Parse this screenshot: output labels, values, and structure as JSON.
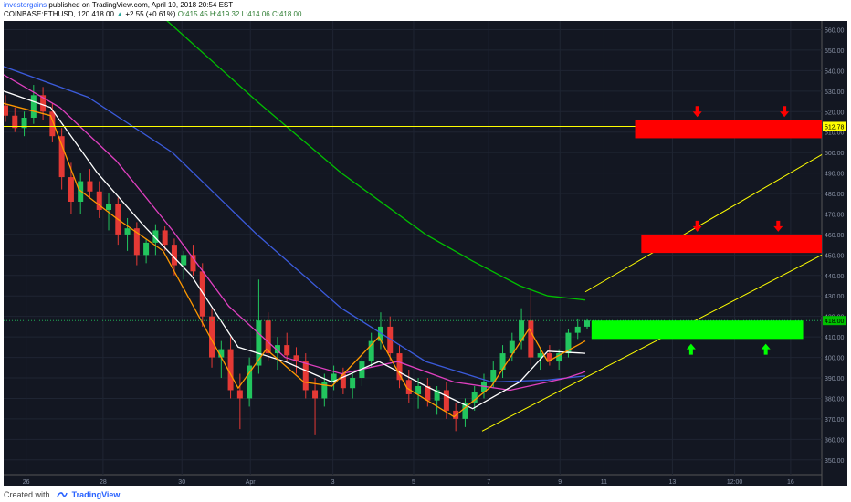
{
  "header": {
    "author": "investorgains",
    "published": "published on TradingView.com, April 10, 2018 20:54 EST",
    "symbol": "COINBASE:ETHUSD, 120",
    "last": "418.00",
    "change": "+2.55 (+0.61%)",
    "open": "O:415.45",
    "high": "H:419.32",
    "low": "L:414.06",
    "close": "C:418.00"
  },
  "footer": {
    "created_with": "Created with",
    "brand": "TradingView"
  },
  "chart_data": {
    "type": "candlestick",
    "symbol": "COINBASE:ETHUSD",
    "interval": "120",
    "ylim": [
      345,
      562
    ],
    "y_ticks": [
      "560.00",
      "550.00",
      "540.00",
      "530.00",
      "520.00",
      "510.00",
      "500.00",
      "490.00",
      "480.00",
      "470.00",
      "460.00",
      "450.00",
      "440.00",
      "430.00",
      "420.00",
      "410.00",
      "400.00",
      "390.00",
      "380.00",
      "370.00",
      "360.00",
      "350.00"
    ],
    "x_ticks": [
      "26",
      "28",
      "30",
      "Apr",
      "3",
      "5",
      "7",
      "9",
      "11",
      "13",
      "12:00",
      "16"
    ],
    "price_labels": [
      {
        "text": "512.78",
        "value": 512.78,
        "color": "#ffff00"
      },
      {
        "text": "418.00",
        "value": 418.0,
        "color": "#00c000"
      }
    ],
    "series": [
      {
        "kind": "ohlc",
        "points": [
          {
            "t": 0,
            "o": 523,
            "h": 528,
            "l": 515,
            "c": 518
          },
          {
            "t": 1,
            "o": 518,
            "h": 522,
            "l": 510,
            "c": 512
          },
          {
            "t": 2,
            "o": 512,
            "h": 520,
            "l": 508,
            "c": 517
          },
          {
            "t": 3,
            "o": 517,
            "h": 533,
            "l": 514,
            "c": 528
          },
          {
            "t": 4,
            "o": 528,
            "h": 532,
            "l": 516,
            "c": 520
          },
          {
            "t": 5,
            "o": 520,
            "h": 524,
            "l": 505,
            "c": 508
          },
          {
            "t": 6,
            "o": 508,
            "h": 512,
            "l": 482,
            "c": 488
          },
          {
            "t": 7,
            "o": 488,
            "h": 495,
            "l": 470,
            "c": 476
          },
          {
            "t": 8,
            "o": 476,
            "h": 490,
            "l": 470,
            "c": 486
          },
          {
            "t": 9,
            "o": 486,
            "h": 492,
            "l": 478,
            "c": 481
          },
          {
            "t": 10,
            "o": 481,
            "h": 486,
            "l": 468,
            "c": 472
          },
          {
            "t": 11,
            "o": 472,
            "h": 480,
            "l": 462,
            "c": 475
          },
          {
            "t": 12,
            "o": 475,
            "h": 478,
            "l": 455,
            "c": 460
          },
          {
            "t": 13,
            "o": 460,
            "h": 468,
            "l": 452,
            "c": 463
          },
          {
            "t": 14,
            "o": 463,
            "h": 466,
            "l": 445,
            "c": 450
          },
          {
            "t": 15,
            "o": 450,
            "h": 458,
            "l": 446,
            "c": 456
          },
          {
            "t": 16,
            "o": 456,
            "h": 465,
            "l": 450,
            "c": 462
          },
          {
            "t": 17,
            "o": 462,
            "h": 464,
            "l": 452,
            "c": 455
          },
          {
            "t": 18,
            "o": 455,
            "h": 458,
            "l": 440,
            "c": 445
          },
          {
            "t": 19,
            "o": 445,
            "h": 452,
            "l": 438,
            "c": 450
          },
          {
            "t": 20,
            "o": 450,
            "h": 455,
            "l": 440,
            "c": 442
          },
          {
            "t": 21,
            "o": 442,
            "h": 446,
            "l": 415,
            "c": 420
          },
          {
            "t": 22,
            "o": 420,
            "h": 424,
            "l": 395,
            "c": 400
          },
          {
            "t": 23,
            "o": 400,
            "h": 408,
            "l": 390,
            "c": 404
          },
          {
            "t": 24,
            "o": 404,
            "h": 410,
            "l": 380,
            "c": 384
          },
          {
            "t": 25,
            "o": 384,
            "h": 392,
            "l": 365,
            "c": 380
          },
          {
            "t": 26,
            "o": 380,
            "h": 400,
            "l": 376,
            "c": 396
          },
          {
            "t": 27,
            "o": 396,
            "h": 438,
            "l": 392,
            "c": 418
          },
          {
            "t": 28,
            "o": 418,
            "h": 422,
            "l": 398,
            "c": 402
          },
          {
            "t": 29,
            "o": 402,
            "h": 410,
            "l": 394,
            "c": 406
          },
          {
            "t": 30,
            "o": 406,
            "h": 412,
            "l": 398,
            "c": 401
          },
          {
            "t": 31,
            "o": 401,
            "h": 405,
            "l": 392,
            "c": 398
          },
          {
            "t": 32,
            "o": 398,
            "h": 402,
            "l": 380,
            "c": 384
          },
          {
            "t": 33,
            "o": 384,
            "h": 390,
            "l": 362,
            "c": 380
          },
          {
            "t": 34,
            "o": 380,
            "h": 392,
            "l": 376,
            "c": 388
          },
          {
            "t": 35,
            "o": 388,
            "h": 396,
            "l": 384,
            "c": 392
          },
          {
            "t": 36,
            "o": 392,
            "h": 395,
            "l": 382,
            "c": 385
          },
          {
            "t": 37,
            "o": 385,
            "h": 392,
            "l": 380,
            "c": 390
          },
          {
            "t": 38,
            "o": 390,
            "h": 402,
            "l": 386,
            "c": 398
          },
          {
            "t": 39,
            "o": 398,
            "h": 412,
            "l": 395,
            "c": 408
          },
          {
            "t": 40,
            "o": 408,
            "h": 422,
            "l": 404,
            "c": 415
          },
          {
            "t": 41,
            "o": 415,
            "h": 420,
            "l": 398,
            "c": 402
          },
          {
            "t": 42,
            "o": 402,
            "h": 406,
            "l": 385,
            "c": 389
          },
          {
            "t": 43,
            "o": 389,
            "h": 394,
            "l": 378,
            "c": 382
          },
          {
            "t": 44,
            "o": 382,
            "h": 390,
            "l": 375,
            "c": 386
          },
          {
            "t": 45,
            "o": 386,
            "h": 390,
            "l": 376,
            "c": 379
          },
          {
            "t": 46,
            "o": 379,
            "h": 386,
            "l": 372,
            "c": 384
          },
          {
            "t": 47,
            "o": 384,
            "h": 388,
            "l": 370,
            "c": 374
          },
          {
            "t": 48,
            "o": 374,
            "h": 378,
            "l": 364,
            "c": 370
          },
          {
            "t": 49,
            "o": 370,
            "h": 380,
            "l": 366,
            "c": 378
          },
          {
            "t": 50,
            "o": 378,
            "h": 386,
            "l": 374,
            "c": 383
          },
          {
            "t": 51,
            "o": 383,
            "h": 392,
            "l": 380,
            "c": 388
          },
          {
            "t": 52,
            "o": 388,
            "h": 398,
            "l": 385,
            "c": 394
          },
          {
            "t": 53,
            "o": 394,
            "h": 406,
            "l": 390,
            "c": 402
          },
          {
            "t": 54,
            "o": 402,
            "h": 412,
            "l": 398,
            "c": 408
          },
          {
            "t": 55,
            "o": 408,
            "h": 424,
            "l": 404,
            "c": 418
          },
          {
            "t": 56,
            "o": 418,
            "h": 433,
            "l": 396,
            "c": 400
          },
          {
            "t": 57,
            "o": 400,
            "h": 405,
            "l": 394,
            "c": 402
          },
          {
            "t": 58,
            "o": 402,
            "h": 406,
            "l": 396,
            "c": 398
          },
          {
            "t": 59,
            "o": 398,
            "h": 404,
            "l": 394,
            "c": 402
          },
          {
            "t": 60,
            "o": 402,
            "h": 414,
            "l": 400,
            "c": 412
          },
          {
            "t": 61,
            "o": 412,
            "h": 419,
            "l": 409,
            "c": 415
          },
          {
            "t": 62,
            "o": 415,
            "h": 419,
            "l": 414,
            "c": 418
          }
        ]
      },
      {
        "kind": "moving-average",
        "color": "#00c000",
        "values": [
          {
            "t": 0,
            "v": 610
          },
          {
            "t": 9,
            "v": 598
          },
          {
            "t": 18,
            "v": 562
          },
          {
            "t": 27,
            "v": 525
          },
          {
            "t": 36,
            "v": 490
          },
          {
            "t": 45,
            "v": 460
          },
          {
            "t": 50,
            "v": 447
          },
          {
            "t": 55,
            "v": 435
          },
          {
            "t": 58,
            "v": 430
          },
          {
            "t": 62,
            "v": 428
          }
        ]
      },
      {
        "kind": "moving-average",
        "color": "#3b5bdb",
        "values": [
          {
            "t": 0,
            "v": 542
          },
          {
            "t": 9,
            "v": 527
          },
          {
            "t": 18,
            "v": 500
          },
          {
            "t": 27,
            "v": 460
          },
          {
            "t": 36,
            "v": 424
          },
          {
            "t": 45,
            "v": 398
          },
          {
            "t": 52,
            "v": 388
          },
          {
            "t": 58,
            "v": 389
          },
          {
            "t": 62,
            "v": 391
          }
        ]
      },
      {
        "kind": "moving-average",
        "color": "#e040c0",
        "values": [
          {
            "t": 0,
            "v": 538
          },
          {
            "t": 6,
            "v": 522
          },
          {
            "t": 12,
            "v": 496
          },
          {
            "t": 18,
            "v": 462
          },
          {
            "t": 24,
            "v": 425
          },
          {
            "t": 30,
            "v": 400
          },
          {
            "t": 36,
            "v": 392
          },
          {
            "t": 42,
            "v": 398
          },
          {
            "t": 48,
            "v": 388
          },
          {
            "t": 54,
            "v": 384
          },
          {
            "t": 60,
            "v": 390
          },
          {
            "t": 62,
            "v": 393
          }
        ]
      },
      {
        "kind": "moving-average",
        "color": "#ffffff",
        "values": [
          {
            "t": 0,
            "v": 530
          },
          {
            "t": 5,
            "v": 522
          },
          {
            "t": 10,
            "v": 490
          },
          {
            "t": 15,
            "v": 464
          },
          {
            "t": 20,
            "v": 440
          },
          {
            "t": 25,
            "v": 405
          },
          {
            "t": 30,
            "v": 398
          },
          {
            "t": 35,
            "v": 388
          },
          {
            "t": 40,
            "v": 398
          },
          {
            "t": 45,
            "v": 386
          },
          {
            "t": 50,
            "v": 375
          },
          {
            "t": 55,
            "v": 388
          },
          {
            "t": 58,
            "v": 403
          },
          {
            "t": 62,
            "v": 402
          }
        ]
      },
      {
        "kind": "moving-average",
        "color": "#ff9800",
        "values": [
          {
            "t": 0,
            "v": 524
          },
          {
            "t": 5,
            "v": 518
          },
          {
            "t": 8,
            "v": 482
          },
          {
            "t": 12,
            "v": 468
          },
          {
            "t": 17,
            "v": 452
          },
          {
            "t": 22,
            "v": 410
          },
          {
            "t": 25,
            "v": 385
          },
          {
            "t": 28,
            "v": 404
          },
          {
            "t": 32,
            "v": 388
          },
          {
            "t": 35,
            "v": 386
          },
          {
            "t": 40,
            "v": 410
          },
          {
            "t": 43,
            "v": 385
          },
          {
            "t": 48,
            "v": 371
          },
          {
            "t": 52,
            "v": 386
          },
          {
            "t": 56,
            "v": 414
          },
          {
            "t": 58,
            "v": 398
          },
          {
            "t": 62,
            "v": 408
          }
        ]
      }
    ],
    "drawings": [
      {
        "kind": "horizontal-line",
        "color": "#ffff00",
        "y": 512.78
      },
      {
        "kind": "trend-line",
        "color": "#ffff00",
        "from": {
          "t": 51,
          "v": 364
        },
        "to": {
          "t": 100,
          "v": 450
        }
      },
      {
        "kind": "trend-line",
        "color": "#ffff00",
        "from": {
          "t": 62,
          "v": 432
        },
        "to": {
          "t": 100,
          "v": 499
        }
      },
      {
        "kind": "zone",
        "color": "#ff0000",
        "from_t": 70,
        "to_t": 100,
        "top": 516,
        "bottom": 507
      },
      {
        "kind": "zone",
        "color": "#ff0000",
        "from_t": 71,
        "to_t": 100,
        "top": 460,
        "bottom": 451
      },
      {
        "kind": "zone",
        "color": "#00ff00",
        "from_t": 63,
        "to_t": 97,
        "top": 418,
        "bottom": 409
      },
      {
        "kind": "arrow-down",
        "color": "#ff0000",
        "t": 80,
        "v": 520
      },
      {
        "kind": "arrow-down",
        "color": "#ff0000",
        "t": 94,
        "v": 520
      },
      {
        "kind": "arrow-down",
        "color": "#ff0000",
        "t": 80,
        "v": 464
      },
      {
        "kind": "arrow-down",
        "color": "#ff0000",
        "t": 93,
        "v": 464
      },
      {
        "kind": "arrow-up",
        "color": "#00ff00",
        "t": 79,
        "v": 404
      },
      {
        "kind": "arrow-up",
        "color": "#00ff00",
        "t": 91,
        "v": 404
      }
    ]
  }
}
